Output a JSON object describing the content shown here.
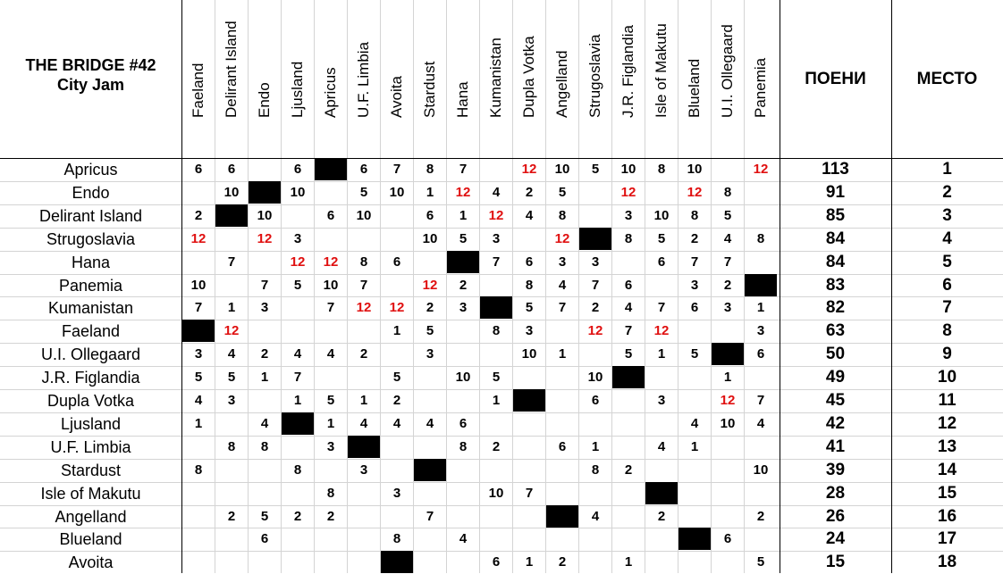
{
  "title_line1": "THE BRIDGE #42",
  "title_line2": "City Jam",
  "columns": [
    "Faeland",
    "Delirant Island",
    "Endo",
    "Ljusland",
    "Apricus",
    "U.F. Limbia",
    "Avoita",
    "Stardust",
    "Hana",
    "Kumanistan",
    "Dupla Votka",
    "Angelland",
    "Strugoslavia",
    "J.R. Figlandia",
    "Isle of Makutu",
    "Blueland",
    "U.I. Ollegaard",
    "Panemia"
  ],
  "points_header": "ПОЕНИ",
  "place_header": "МЕСТО",
  "accent_red": "#e01010",
  "rows": [
    {
      "name": "Apricus",
      "scores": [
        "6",
        "6",
        "",
        "6",
        "#",
        "6",
        "7",
        "8",
        "7",
        "",
        "12",
        "10",
        "5",
        "10",
        "8",
        "10",
        "",
        "12"
      ],
      "points": "113",
      "place": "1"
    },
    {
      "name": "Endo",
      "scores": [
        "",
        "10",
        "#",
        "10",
        "",
        "5",
        "10",
        "1",
        "12",
        "4",
        "2",
        "5",
        "",
        "12",
        "",
        "12",
        "8",
        ""
      ],
      "points": "91",
      "place": "2"
    },
    {
      "name": "Delirant Island",
      "scores": [
        "2",
        "#",
        "10",
        "",
        "6",
        "10",
        "",
        "6",
        "1",
        "12",
        "4",
        "8",
        "",
        "3",
        "10",
        "8",
        "5",
        ""
      ],
      "points": "85",
      "place": "3"
    },
    {
      "name": "Strugoslavia",
      "scores": [
        "12",
        "",
        "12",
        "3",
        "",
        "",
        "",
        "10",
        "5",
        "3",
        "",
        "12",
        "#",
        "8",
        "5",
        "2",
        "4",
        "8"
      ],
      "points": "84",
      "place": "4"
    },
    {
      "name": "Hana",
      "scores": [
        "",
        "7",
        "",
        "12",
        "12",
        "8",
        "6",
        "",
        "#",
        "7",
        "6",
        "3",
        "3",
        "",
        "6",
        "7",
        "7",
        ""
      ],
      "points": "84",
      "place": "5"
    },
    {
      "name": "Panemia",
      "scores": [
        "10",
        "",
        "7",
        "5",
        "10",
        "7",
        "",
        "12",
        "2",
        "",
        "8",
        "4",
        "7",
        "6",
        "",
        "3",
        "2",
        "#"
      ],
      "points": "83",
      "place": "6"
    },
    {
      "name": "Kumanistan",
      "scores": [
        "7",
        "1",
        "3",
        "",
        "7",
        "12",
        "12",
        "2",
        "3",
        "#",
        "5",
        "7",
        "2",
        "4",
        "7",
        "6",
        "3",
        "1"
      ],
      "points": "82",
      "place": "7"
    },
    {
      "name": "Faeland",
      "scores": [
        "#",
        "12",
        "",
        "",
        "",
        "",
        "1",
        "5",
        "",
        "8",
        "3",
        "",
        "12",
        "7",
        "12",
        "",
        "",
        "3"
      ],
      "points": "63",
      "place": "8"
    },
    {
      "name": "U.I. Ollegaard",
      "scores": [
        "3",
        "4",
        "2",
        "4",
        "4",
        "2",
        "",
        "3",
        "",
        "",
        "10",
        "1",
        "",
        "5",
        "1",
        "5",
        "#",
        "6"
      ],
      "points": "50",
      "place": "9"
    },
    {
      "name": "J.R. Figlandia",
      "scores": [
        "5",
        "5",
        "1",
        "7",
        "",
        "",
        "5",
        "",
        "10",
        "5",
        "",
        "",
        "10",
        "#",
        "",
        "",
        "1",
        ""
      ],
      "points": "49",
      "place": "10"
    },
    {
      "name": "Dupla Votka",
      "scores": [
        "4",
        "3",
        "",
        "1",
        "5",
        "1",
        "2",
        "",
        "",
        "1",
        "#",
        "",
        "6",
        "",
        "3",
        "",
        "12",
        "7"
      ],
      "points": "45",
      "place": "11"
    },
    {
      "name": "Ljusland",
      "scores": [
        "1",
        "",
        "4",
        "#",
        "1",
        "4",
        "4",
        "4",
        "6",
        "",
        "",
        "",
        "",
        "",
        "",
        "4",
        "10",
        "4"
      ],
      "points": "42",
      "place": "12"
    },
    {
      "name": "U.F. Limbia",
      "scores": [
        "",
        "8",
        "8",
        "",
        "3",
        "#",
        "",
        "",
        "8",
        "2",
        "",
        "6",
        "1",
        "",
        "4",
        "1",
        "",
        ""
      ],
      "points": "41",
      "place": "13"
    },
    {
      "name": "Stardust",
      "scores": [
        "8",
        "",
        "",
        "8",
        "",
        "3",
        "",
        "#",
        "",
        "",
        "",
        "",
        "8",
        "2",
        "",
        "",
        "",
        "10"
      ],
      "points": "39",
      "place": "14"
    },
    {
      "name": "Isle of Makutu",
      "scores": [
        "",
        "",
        "",
        "",
        "8",
        "",
        "3",
        "",
        "",
        "10",
        "7",
        "",
        "",
        "",
        "#",
        "",
        "",
        ""
      ],
      "points": "28",
      "place": "15"
    },
    {
      "name": "Angelland",
      "scores": [
        "",
        "2",
        "5",
        "2",
        "2",
        "",
        "",
        "7",
        "",
        "",
        "",
        "#",
        "4",
        "",
        "2",
        "",
        "",
        "2"
      ],
      "points": "26",
      "place": "16"
    },
    {
      "name": "Blueland",
      "scores": [
        "",
        "",
        "6",
        "",
        "",
        "",
        "8",
        "",
        "4",
        "",
        "",
        "",
        "",
        "",
        "",
        "#",
        "6",
        ""
      ],
      "points": "24",
      "place": "17"
    },
    {
      "name": "Avoita",
      "scores": [
        "",
        "",
        "",
        "",
        "",
        "",
        "#",
        "",
        "",
        "6",
        "1",
        "2",
        "",
        "1",
        "",
        "",
        "",
        "5"
      ],
      "points": "15",
      "place": "18"
    }
  ]
}
